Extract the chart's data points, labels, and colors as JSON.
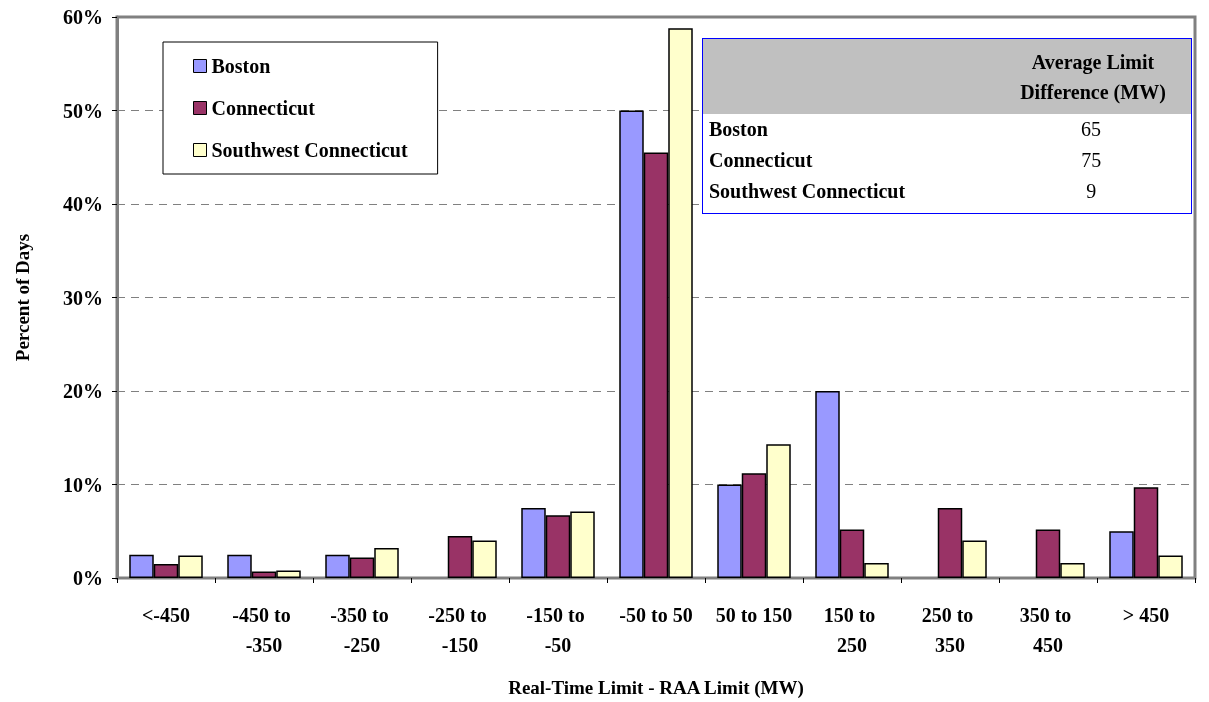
{
  "chart_data": {
    "type": "bar",
    "xlabel": "Real-Time Limit - RAA Limit (MW)",
    "ylabel": "Percent of Days",
    "categories": [
      "<-450",
      "-450 to -350",
      "-350 to -250",
      "-250 to -150",
      "-150 to -50",
      "-50 to 50",
      "50 to 150",
      "150 to 250",
      "250 to 350",
      "350 to 450",
      "> 450"
    ],
    "series": [
      {
        "name": "Boston",
        "color": "#9999ff",
        "values": [
          2.5,
          2.5,
          2.5,
          0,
          7.5,
          50,
          10,
          20,
          0,
          0,
          5
        ]
      },
      {
        "name": "Connecticut",
        "color": "#993366",
        "values": [
          1.5,
          0.7,
          2.2,
          4.5,
          6.7,
          45.5,
          11.2,
          5.2,
          7.5,
          5.2,
          9.7
        ]
      },
      {
        "name": "Southwest Connecticut",
        "color": "#ffffcc",
        "values": [
          2.4,
          0.8,
          3.2,
          4,
          7.1,
          58.8,
          14.3,
          1.6,
          4,
          1.6,
          2.4
        ]
      }
    ],
    "ylim": [
      0,
      60
    ],
    "yticks": [
      {
        "value": 0,
        "label": "0%"
      },
      {
        "value": 10,
        "label": "10%"
      },
      {
        "value": 20,
        "label": "20%"
      },
      {
        "value": 30,
        "label": "30%"
      },
      {
        "value": 40,
        "label": "40%"
      },
      {
        "value": 50,
        "label": "50%"
      },
      {
        "value": 60,
        "label": "60%"
      }
    ],
    "grid": "y",
    "legend": "top left",
    "annotations": [
      "Average Limit Difference (MW)",
      "Boston",
      "65",
      "Connecticut",
      "75",
      "Southwest Connecticut",
      "9"
    ]
  }
}
